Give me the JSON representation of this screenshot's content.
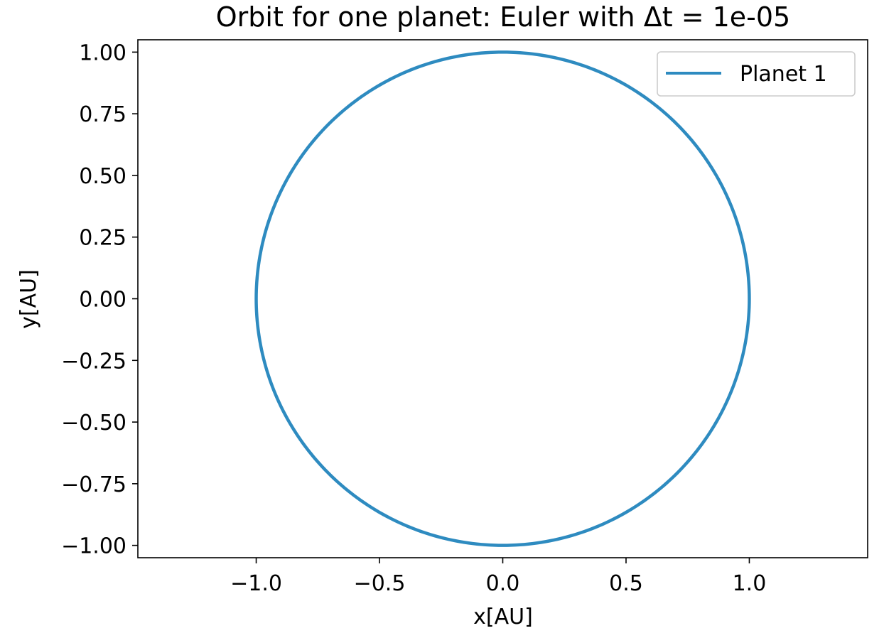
{
  "chart_data": {
    "type": "line",
    "title": "Orbit for one planet: Euler with Δt = 1e-05",
    "xlabel": "x[AU]",
    "ylabel": "y[AU]",
    "xlim": [
      -1.48,
      1.48
    ],
    "ylim": [
      -1.05,
      1.05
    ],
    "xticks": [
      -1.0,
      -0.5,
      0.0,
      0.5,
      1.0
    ],
    "xtick_labels": [
      "−1.0",
      "−0.5",
      "0.0",
      "0.5",
      "1.0"
    ],
    "yticks": [
      -1.0,
      -0.75,
      -0.5,
      -0.25,
      0.0,
      0.25,
      0.5,
      0.75,
      1.0
    ],
    "ytick_labels": [
      "−1.00",
      "−0.75",
      "−0.50",
      "−0.25",
      "0.00",
      "0.25",
      "0.50",
      "0.75",
      "1.00"
    ],
    "grid": false,
    "legend_position": "top-right",
    "series": [
      {
        "name": "Planet 1",
        "color": "#2e8bc0",
        "orbit": {
          "shape": "circle",
          "center_x": 0.0,
          "center_y": 0.0,
          "radius": 1.0
        }
      }
    ]
  }
}
